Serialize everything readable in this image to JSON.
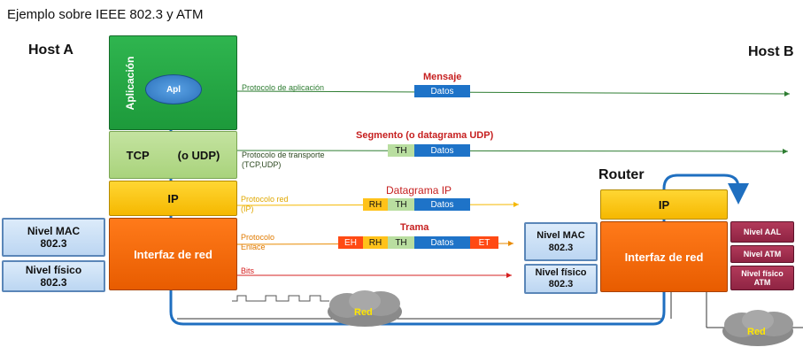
{
  "title": "Ejemplo sobre IEEE 802.3 y ATM",
  "hosts": {
    "a": "Host A",
    "b": "Host B",
    "router": "Router"
  },
  "host_a_stack": {
    "aplicacion": "Aplicación",
    "apl": "Apl",
    "tcp": "TCP",
    "udp": "(o UDP)",
    "ip": "IP",
    "interfaz": "Interfaz de red"
  },
  "host_a_side": {
    "mac": "Nivel MAC\n802.3",
    "fisico": "Nivel físico\n802.3"
  },
  "router_stack": {
    "ip": "IP",
    "interfaz": "Interfaz de red"
  },
  "router_left": {
    "mac": "Nivel MAC\n802.3",
    "fisico": "Nivel físico\n802.3"
  },
  "router_right": {
    "aal": "Nivel  AAL",
    "atm": "Nivel ATM",
    "fisico_atm": "Nivel físico\nATM"
  },
  "protocols": {
    "aplicacion": "Protocolo de aplicación",
    "transporte": "Protocolo de transporte\n(TCP,UDP)",
    "red": "Protocolo red\n(IP)",
    "enlace": "Protocolo\nEnlace",
    "bits": "Bits"
  },
  "pdus": {
    "mensaje": "Mensaje",
    "segmento": "Segmento (o datagrama UDP)",
    "datagrama": "Datagrama IP",
    "trama": "Trama"
  },
  "fields": {
    "datos": "Datos",
    "th": "TH",
    "rh": "RH",
    "eh": "EH",
    "et": "ET"
  },
  "clouds": {
    "red1": "Red",
    "red2": "Red"
  },
  "colors": {
    "arrow_app": "#2e7d32",
    "arrow_ip": "#f5b800",
    "arrow_link": "#e88a00",
    "arrow_bits": "#d62020",
    "path": "#1f6fc0"
  }
}
